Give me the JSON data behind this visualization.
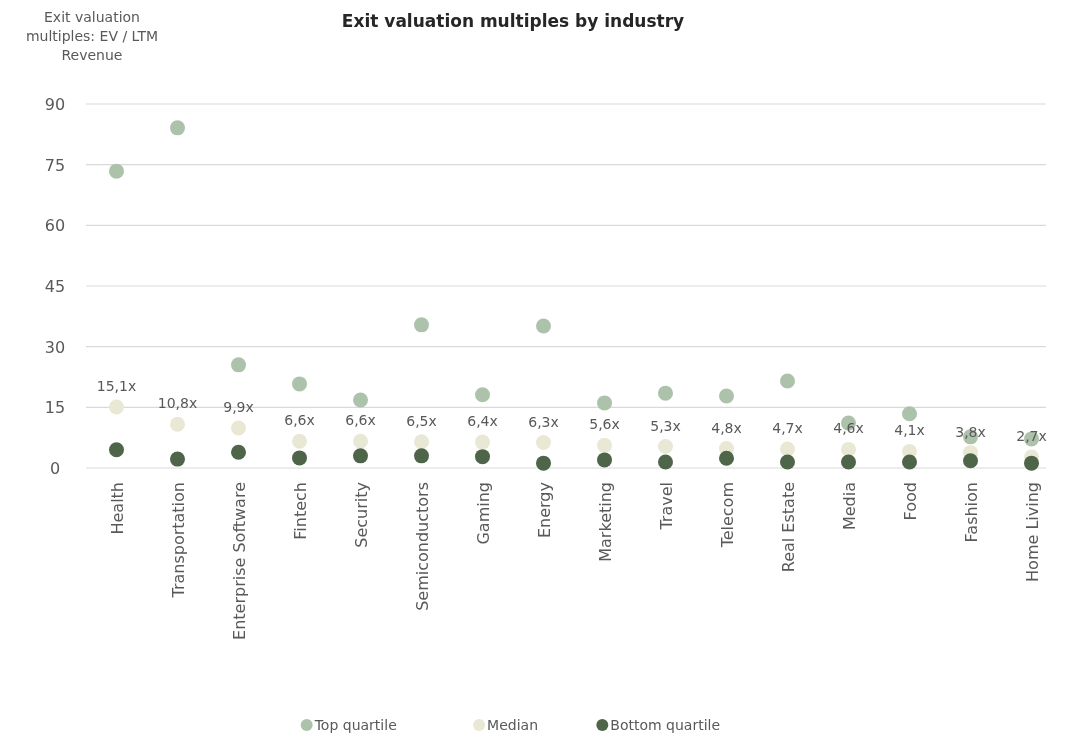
{
  "chart_data": {
    "type": "scatter",
    "title": "Exit valuation multiples by industry",
    "ylabel": "Exit valuation multiples: EV / LTM Revenue",
    "categories": [
      "Health",
      "Transportation",
      "Enterprise Software",
      "Fintech",
      "Security",
      "Semiconductors",
      "Gaming",
      "Energy",
      "Marketing",
      "Travel",
      "Telecom",
      "Real Estate",
      "Media",
      "Food",
      "Fashion",
      "Home Living"
    ],
    "series": [
      {
        "name": "Top quartile",
        "color": "#adc2ab",
        "values": [
          73.4,
          84.1,
          25.5,
          20.8,
          16.8,
          35.4,
          18.1,
          35.1,
          16.1,
          18.5,
          17.8,
          21.5,
          11.1,
          13.4,
          7.7,
          7.2
        ]
      },
      {
        "name": "Median",
        "color": "#e9e8d4",
        "values": [
          15.1,
          10.8,
          9.9,
          6.6,
          6.6,
          6.5,
          6.4,
          6.3,
          5.6,
          5.3,
          4.8,
          4.7,
          4.6,
          4.1,
          3.8,
          2.7
        ],
        "value_labels": [
          "15,1x",
          "10,8x",
          "9,9x",
          "6,6x",
          "6,6x",
          "6,5x",
          "6,4x",
          "6,3x",
          "5,6x",
          "5,3x",
          "4,8x",
          "4,7x",
          "4,6x",
          "4,1x",
          "3,8x",
          "2,7x"
        ]
      },
      {
        "name": "Bottom quartile",
        "color": "#4e654a",
        "values": [
          4.5,
          2.2,
          3.9,
          2.5,
          3.0,
          3.0,
          2.8,
          1.2,
          2.0,
          1.5,
          2.4,
          1.5,
          1.5,
          1.5,
          1.8,
          1.2
        ]
      }
    ],
    "ylim": [
      0,
      90
    ],
    "yticks": [
      0,
      15,
      30,
      45,
      60,
      75,
      90
    ],
    "grid": "y",
    "legend": "bottom",
    "marker": "circle"
  }
}
